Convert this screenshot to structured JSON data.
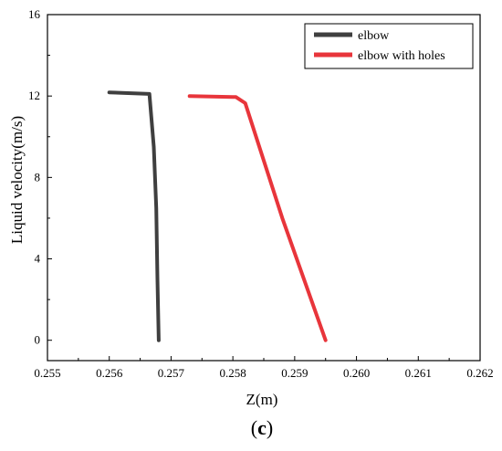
{
  "chart_data": {
    "type": "line",
    "title": "",
    "xlabel": "Z(m)",
    "ylabel": "Liquid velocity(m/s)",
    "panel_label": {
      "open": "(",
      "letter": "c",
      "close": ")"
    },
    "xlim": [
      0.255,
      0.262
    ],
    "ylim": [
      -1,
      16
    ],
    "xticks": [
      "0.255",
      "0.256",
      "0.257",
      "0.258",
      "0.259",
      "0.260",
      "0.261",
      "0.262"
    ],
    "yticks": [
      "0",
      "4",
      "8",
      "12",
      "16"
    ],
    "legend_position": "top-right",
    "grid": false,
    "series": [
      {
        "name": "elbow",
        "color": "#3f3f3f",
        "points": [
          [
            0.256,
            12.18
          ],
          [
            0.25665,
            12.1
          ],
          [
            0.25672,
            9.5
          ],
          [
            0.25676,
            6.5
          ],
          [
            0.25678,
            3.0
          ],
          [
            0.2568,
            0.0
          ]
        ]
      },
      {
        "name": "elbow with holes",
        "color": "#e8353b",
        "points": [
          [
            0.2573,
            12.0
          ],
          [
            0.25805,
            11.95
          ],
          [
            0.2582,
            11.65
          ],
          [
            0.2588,
            6.0
          ],
          [
            0.2595,
            0.0
          ]
        ]
      }
    ]
  }
}
